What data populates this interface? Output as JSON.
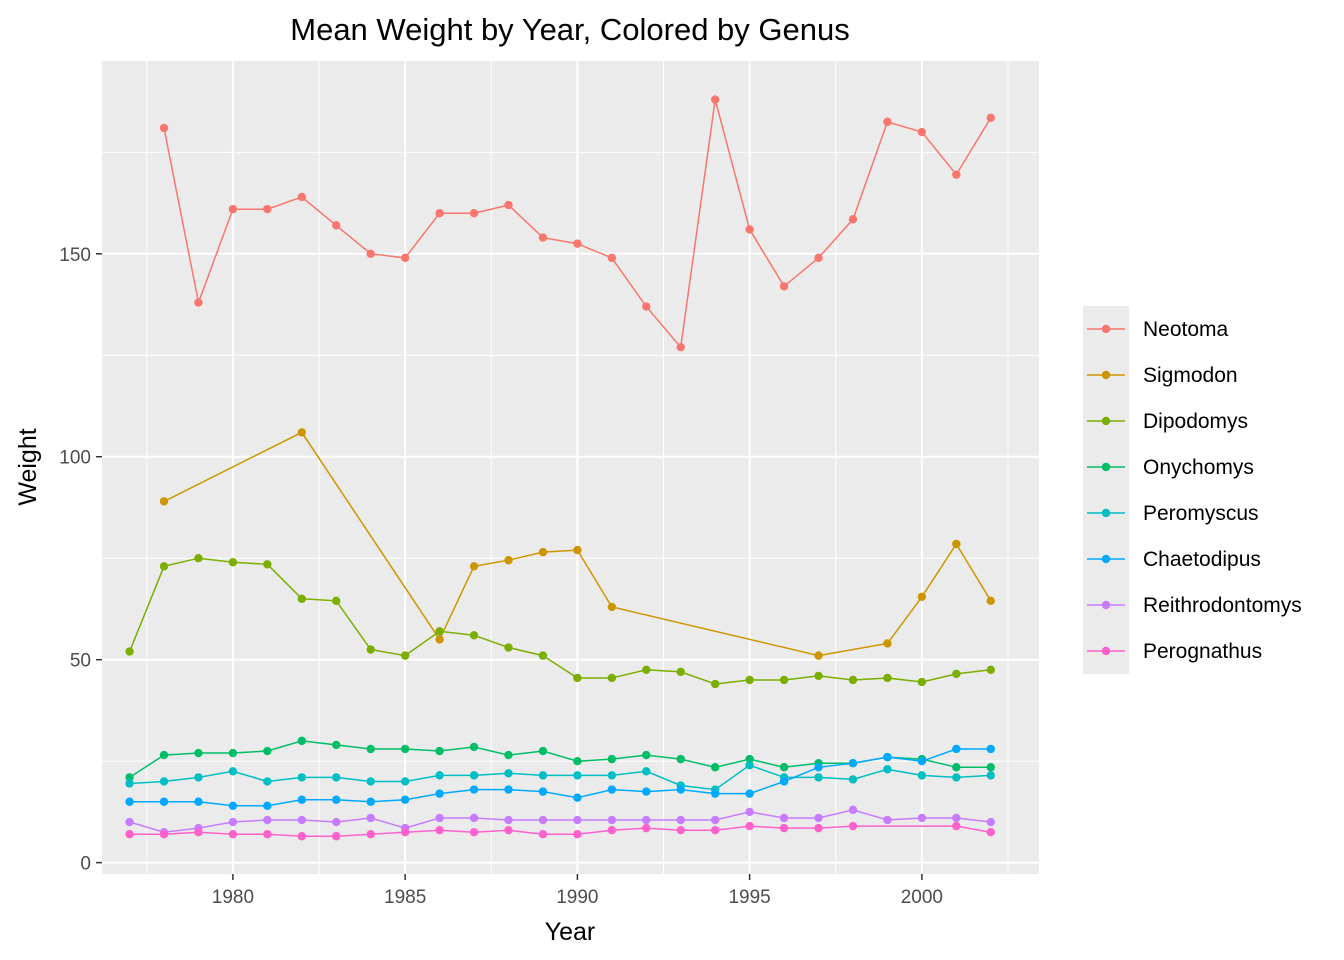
{
  "chart_data": {
    "type": "line",
    "title": "Mean Weight by Year, Colored by Genus",
    "xlabel": "Year",
    "ylabel": "Weight",
    "xlim": [
      1976.2,
      2003.4
    ],
    "ylim": [
      -2.8,
      197.5
    ],
    "x_ticks": [
      1980,
      1985,
      1990,
      1995,
      2000
    ],
    "y_ticks": [
      0,
      50,
      100,
      150
    ],
    "grid": true,
    "legend_position": "right",
    "series": [
      {
        "name": "Neotoma",
        "color": "#F8766D",
        "points": [
          [
            1978,
            181
          ],
          [
            1979,
            138
          ],
          [
            1980,
            161
          ],
          [
            1981,
            161
          ],
          [
            1982,
            164
          ],
          [
            1983,
            157
          ],
          [
            1984,
            150
          ],
          [
            1985,
            149
          ],
          [
            1986,
            160
          ],
          [
            1987,
            160
          ],
          [
            1988,
            162
          ],
          [
            1989,
            154
          ],
          [
            1990,
            152.5
          ],
          [
            1991,
            149
          ],
          [
            1992,
            137
          ],
          [
            1993,
            127
          ],
          [
            1994,
            188
          ],
          [
            1995,
            156
          ],
          [
            1996,
            142
          ],
          [
            1997,
            149
          ],
          [
            1998,
            158.5
          ],
          [
            1999,
            182.5
          ],
          [
            2000,
            180
          ],
          [
            2001,
            169.5
          ],
          [
            2002,
            183.5
          ]
        ]
      },
      {
        "name": "Sigmodon",
        "color": "#CD9600",
        "points": [
          [
            1978,
            89
          ],
          [
            1982,
            106
          ],
          [
            1986,
            55
          ],
          [
            1987,
            73
          ],
          [
            1988,
            74.5
          ],
          [
            1989,
            76.5
          ],
          [
            1990,
            77
          ],
          [
            1991,
            63
          ],
          [
            1997,
            51
          ],
          [
            1999,
            54
          ],
          [
            2000,
            65.5
          ],
          [
            2001,
            78.5
          ],
          [
            2002,
            64.5
          ]
        ]
      },
      {
        "name": "Dipodomys",
        "color": "#7CAE00",
        "points": [
          [
            1977,
            52
          ],
          [
            1978,
            73
          ],
          [
            1979,
            75
          ],
          [
            1980,
            74
          ],
          [
            1981,
            73.5
          ],
          [
            1982,
            65
          ],
          [
            1983,
            64.5
          ],
          [
            1984,
            52.5
          ],
          [
            1985,
            51
          ],
          [
            1986,
            57
          ],
          [
            1987,
            56
          ],
          [
            1988,
            53
          ],
          [
            1989,
            51
          ],
          [
            1990,
            45.5
          ],
          [
            1991,
            45.5
          ],
          [
            1992,
            47.5
          ],
          [
            1993,
            47
          ],
          [
            1994,
            44
          ],
          [
            1995,
            45
          ],
          [
            1996,
            45
          ],
          [
            1997,
            46
          ],
          [
            1998,
            45
          ],
          [
            1999,
            45.5
          ],
          [
            2000,
            44.5
          ],
          [
            2001,
            46.5
          ],
          [
            2002,
            47.5
          ]
        ]
      },
      {
        "name": "Onychomys",
        "color": "#00BE67",
        "points": [
          [
            1977,
            21
          ],
          [
            1978,
            26.5
          ],
          [
            1979,
            27
          ],
          [
            1980,
            27
          ],
          [
            1981,
            27.5
          ],
          [
            1982,
            30
          ],
          [
            1983,
            29
          ],
          [
            1984,
            28
          ],
          [
            1985,
            28
          ],
          [
            1986,
            27.5
          ],
          [
            1987,
            28.5
          ],
          [
            1988,
            26.5
          ],
          [
            1989,
            27.5
          ],
          [
            1990,
            25
          ],
          [
            1991,
            25.5
          ],
          [
            1992,
            26.5
          ],
          [
            1993,
            25.5
          ],
          [
            1994,
            23.5
          ],
          [
            1995,
            25.5
          ],
          [
            1996,
            23.5
          ],
          [
            1997,
            24.5
          ],
          [
            1998,
            24.5
          ],
          [
            1999,
            26
          ],
          [
            2000,
            25.5
          ],
          [
            2001,
            23.5
          ],
          [
            2002,
            23.5
          ]
        ]
      },
      {
        "name": "Peromyscus",
        "color": "#00BFC4",
        "points": [
          [
            1977,
            19.5
          ],
          [
            1978,
            20
          ],
          [
            1979,
            21
          ],
          [
            1980,
            22.5
          ],
          [
            1981,
            20
          ],
          [
            1982,
            21
          ],
          [
            1983,
            21
          ],
          [
            1984,
            20
          ],
          [
            1985,
            20
          ],
          [
            1986,
            21.5
          ],
          [
            1987,
            21.5
          ],
          [
            1988,
            22
          ],
          [
            1989,
            21.5
          ],
          [
            1990,
            21.5
          ],
          [
            1991,
            21.5
          ],
          [
            1992,
            22.5
          ],
          [
            1993,
            19
          ],
          [
            1994,
            18
          ],
          [
            1995,
            24
          ],
          [
            1996,
            21
          ],
          [
            1997,
            21
          ],
          [
            1998,
            20.5
          ],
          [
            1999,
            23
          ],
          [
            2000,
            21.5
          ],
          [
            2001,
            21
          ],
          [
            2002,
            21.5
          ]
        ]
      },
      {
        "name": "Chaetodipus",
        "color": "#00A9FF",
        "points": [
          [
            1977,
            15
          ],
          [
            1978,
            15
          ],
          [
            1979,
            15
          ],
          [
            1980,
            14
          ],
          [
            1981,
            14
          ],
          [
            1982,
            15.5
          ],
          [
            1983,
            15.5
          ],
          [
            1984,
            15
          ],
          [
            1985,
            15.5
          ],
          [
            1986,
            17
          ],
          [
            1987,
            18
          ],
          [
            1988,
            18
          ],
          [
            1989,
            17.5
          ],
          [
            1990,
            16
          ],
          [
            1991,
            18
          ],
          [
            1992,
            17.5
          ],
          [
            1993,
            18
          ],
          [
            1994,
            17
          ],
          [
            1995,
            17
          ],
          [
            1996,
            20
          ],
          [
            1997,
            23.5
          ],
          [
            1998,
            24.5
          ],
          [
            1999,
            26
          ],
          [
            2000,
            25
          ],
          [
            2001,
            28
          ],
          [
            2002,
            28
          ]
        ]
      },
      {
        "name": "Reithrodontomys",
        "color": "#C77CFF",
        "points": [
          [
            1977,
            10
          ],
          [
            1978,
            7.5
          ],
          [
            1979,
            8.5
          ],
          [
            1980,
            10
          ],
          [
            1981,
            10.5
          ],
          [
            1982,
            10.5
          ],
          [
            1983,
            10
          ],
          [
            1984,
            11
          ],
          [
            1985,
            8.5
          ],
          [
            1986,
            11
          ],
          [
            1987,
            11
          ],
          [
            1988,
            10.5
          ],
          [
            1989,
            10.5
          ],
          [
            1990,
            10.5
          ],
          [
            1991,
            10.5
          ],
          [
            1992,
            10.5
          ],
          [
            1993,
            10.5
          ],
          [
            1994,
            10.5
          ],
          [
            1995,
            12.5
          ],
          [
            1996,
            11
          ],
          [
            1997,
            11
          ],
          [
            1998,
            13
          ],
          [
            1999,
            10.5
          ],
          [
            2000,
            11
          ],
          [
            2001,
            11
          ],
          [
            2002,
            10
          ]
        ]
      },
      {
        "name": "Perognathus",
        "color": "#FF61CC",
        "points": [
          [
            1977,
            7
          ],
          [
            1978,
            7
          ],
          [
            1979,
            7.5
          ],
          [
            1980,
            7
          ],
          [
            1981,
            7
          ],
          [
            1982,
            6.5
          ],
          [
            1983,
            6.5
          ],
          [
            1984,
            7
          ],
          [
            1985,
            7.5
          ],
          [
            1986,
            8
          ],
          [
            1987,
            7.5
          ],
          [
            1988,
            8
          ],
          [
            1989,
            7
          ],
          [
            1990,
            7
          ],
          [
            1991,
            8
          ],
          [
            1992,
            8.5
          ],
          [
            1993,
            8
          ],
          [
            1994,
            8
          ],
          [
            1995,
            9
          ],
          [
            1996,
            8.5
          ],
          [
            1997,
            8.5
          ],
          [
            1998,
            9
          ],
          [
            2001,
            9
          ],
          [
            2002,
            7.5
          ]
        ]
      }
    ]
  }
}
